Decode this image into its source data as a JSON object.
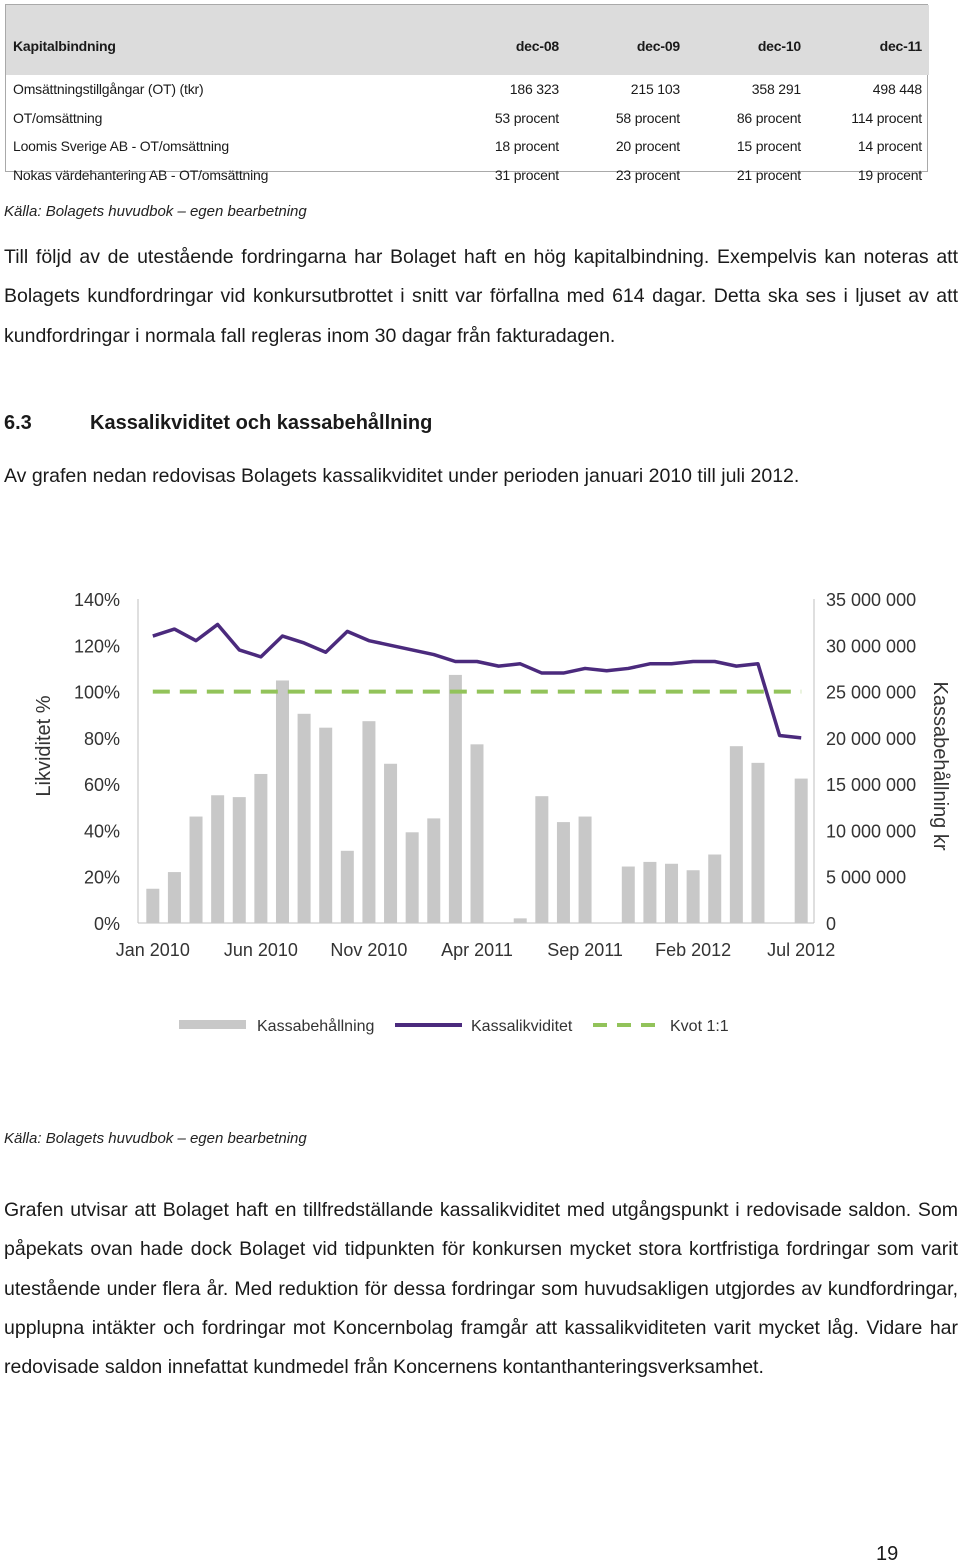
{
  "table": {
    "headers": [
      "Kapitalbindning",
      "dec-08",
      "dec-09",
      "dec-10",
      "dec-11"
    ],
    "rows": [
      [
        "Omsättningstillgångar (OT) (tkr)",
        "186 323",
        "215 103",
        "358 291",
        "498 448"
      ],
      [
        "OT/omsättning",
        "53 procent",
        "58 procent",
        "86 procent",
        "114 procent"
      ],
      [
        "Loomis Sverige AB - OT/omsättning",
        "18 procent",
        "20 procent",
        "15 procent",
        "14 procent"
      ],
      [
        "Nokas värdehantering AB - OT/omsättning",
        "31 procent",
        "23 procent",
        "21 procent",
        "19 procent"
      ]
    ]
  },
  "source_1": "Källa: Bolagets huvudbok – egen bearbetning",
  "paragraph_1": "Till följd av de utestående fordringarna har Bolaget haft en hög kapitalbindning. Exempelvis kan noteras att Bolagets kundfordringar vid konkursutbrottet i snitt var förfallna med 614 dagar. Detta ska ses i ljuset av att kundfordringar i normala fall regleras inom 30 dagar från fakturadagen.",
  "section": {
    "number": "6.3",
    "title": "Kassalikviditet och kassabehållning"
  },
  "lead": "Av grafen nedan redovisas Bolagets kassalikviditet under perioden januari 2010 till juli 2012.",
  "chart_data": {
    "type": "bar+line",
    "x": [
      "Jan 2010",
      "Feb 2010",
      "Mar 2010",
      "Apr 2010",
      "Maj 2010",
      "Jun 2010",
      "Jul 2010",
      "Aug 2010",
      "Sep 2010",
      "Okt 2010",
      "Nov 2010",
      "Dec 2010",
      "Jan 2011",
      "Feb 2011",
      "Mar 2011",
      "Apr 2011",
      "Maj 2011",
      "Jun 2011",
      "Jul 2011",
      "Aug 2011",
      "Sep 2011",
      "Okt 2011",
      "Nov 2011",
      "Dec 2011",
      "Jan 2012",
      "Feb 2012",
      "Mar 2012",
      "Apr 2012",
      "Maj 2012",
      "Jun 2012",
      "Jul 2012"
    ],
    "x_tick_labels": [
      "Jan 2010",
      "Jun 2010",
      "Nov 2010",
      "Apr 2011",
      "Sep 2011",
      "Feb 2012",
      "Jul 2012"
    ],
    "x_tick_index": [
      0,
      5,
      10,
      15,
      20,
      25,
      30
    ],
    "series": [
      {
        "name": "Kassabehållning",
        "kind": "bar",
        "axis": "right",
        "color": "#c8c8c8",
        "values": [
          3700000,
          5500000,
          11500000,
          13800000,
          13600000,
          16100000,
          26200000,
          22600000,
          21100000,
          7800000,
          21800000,
          17200000,
          9800000,
          11300000,
          26800000,
          19300000,
          0,
          500000,
          13700000,
          10900000,
          11500000,
          0,
          6100000,
          6600000,
          6400000,
          5700000,
          7400000,
          19100000,
          17300000,
          0,
          15600000
        ]
      },
      {
        "name": "Kassalikviditet",
        "kind": "line",
        "axis": "left",
        "color": "#4b2a7d",
        "values": [
          124,
          127,
          122,
          129,
          118,
          115,
          124,
          121,
          117,
          126,
          122,
          120,
          118,
          116,
          113,
          113,
          111,
          112,
          108,
          108,
          110,
          109,
          110,
          112,
          112,
          113,
          113,
          111,
          112,
          81,
          80
        ]
      },
      {
        "name": "Kvot 1:1",
        "kind": "dashed-line",
        "axis": "left",
        "color": "#92c35a",
        "values": [
          100,
          100,
          100,
          100,
          100,
          100,
          100,
          100,
          100,
          100,
          100,
          100,
          100,
          100,
          100,
          100,
          100,
          100,
          100,
          100,
          100,
          100,
          100,
          100,
          100,
          100,
          100,
          100,
          100,
          100,
          100
        ]
      }
    ],
    "left_axis": {
      "label": "Likviditet %",
      "ticks": [
        "0%",
        "20%",
        "40%",
        "60%",
        "80%",
        "100%",
        "120%",
        "140%"
      ],
      "range": [
        0,
        140
      ]
    },
    "right_axis": {
      "label": "Kassabehållning kr",
      "ticks": [
        "0",
        "5 000 000",
        "10 000 000",
        "15 000 000",
        "20 000 000",
        "25 000 000",
        "30 000 000",
        "35 000 000"
      ],
      "range": [
        0,
        35000000
      ]
    },
    "grid": false,
    "legend_position": "bottom"
  },
  "source_2": "Källa: Bolagets huvudbok – egen bearbetning",
  "paragraph_2": "Grafen utvisar att Bolaget haft en tillfredställande kassalikviditet med utgångspunkt i redovisade saldon. Som påpekats ovan hade dock Bolaget vid tidpunkten för konkursen mycket stora kortfristiga fordringar som varit utestående under flera år. Med reduktion för dessa fordringar som huvudsakligen utgjordes av kundfordringar, upplupna intäkter och fordringar mot Koncernbolag framgår att kassalikviditeten varit mycket låg. Vidare har redovisade saldon innefattat kundmedel från Koncernens kontanthanteringsverksamhet.",
  "page_number": "19"
}
